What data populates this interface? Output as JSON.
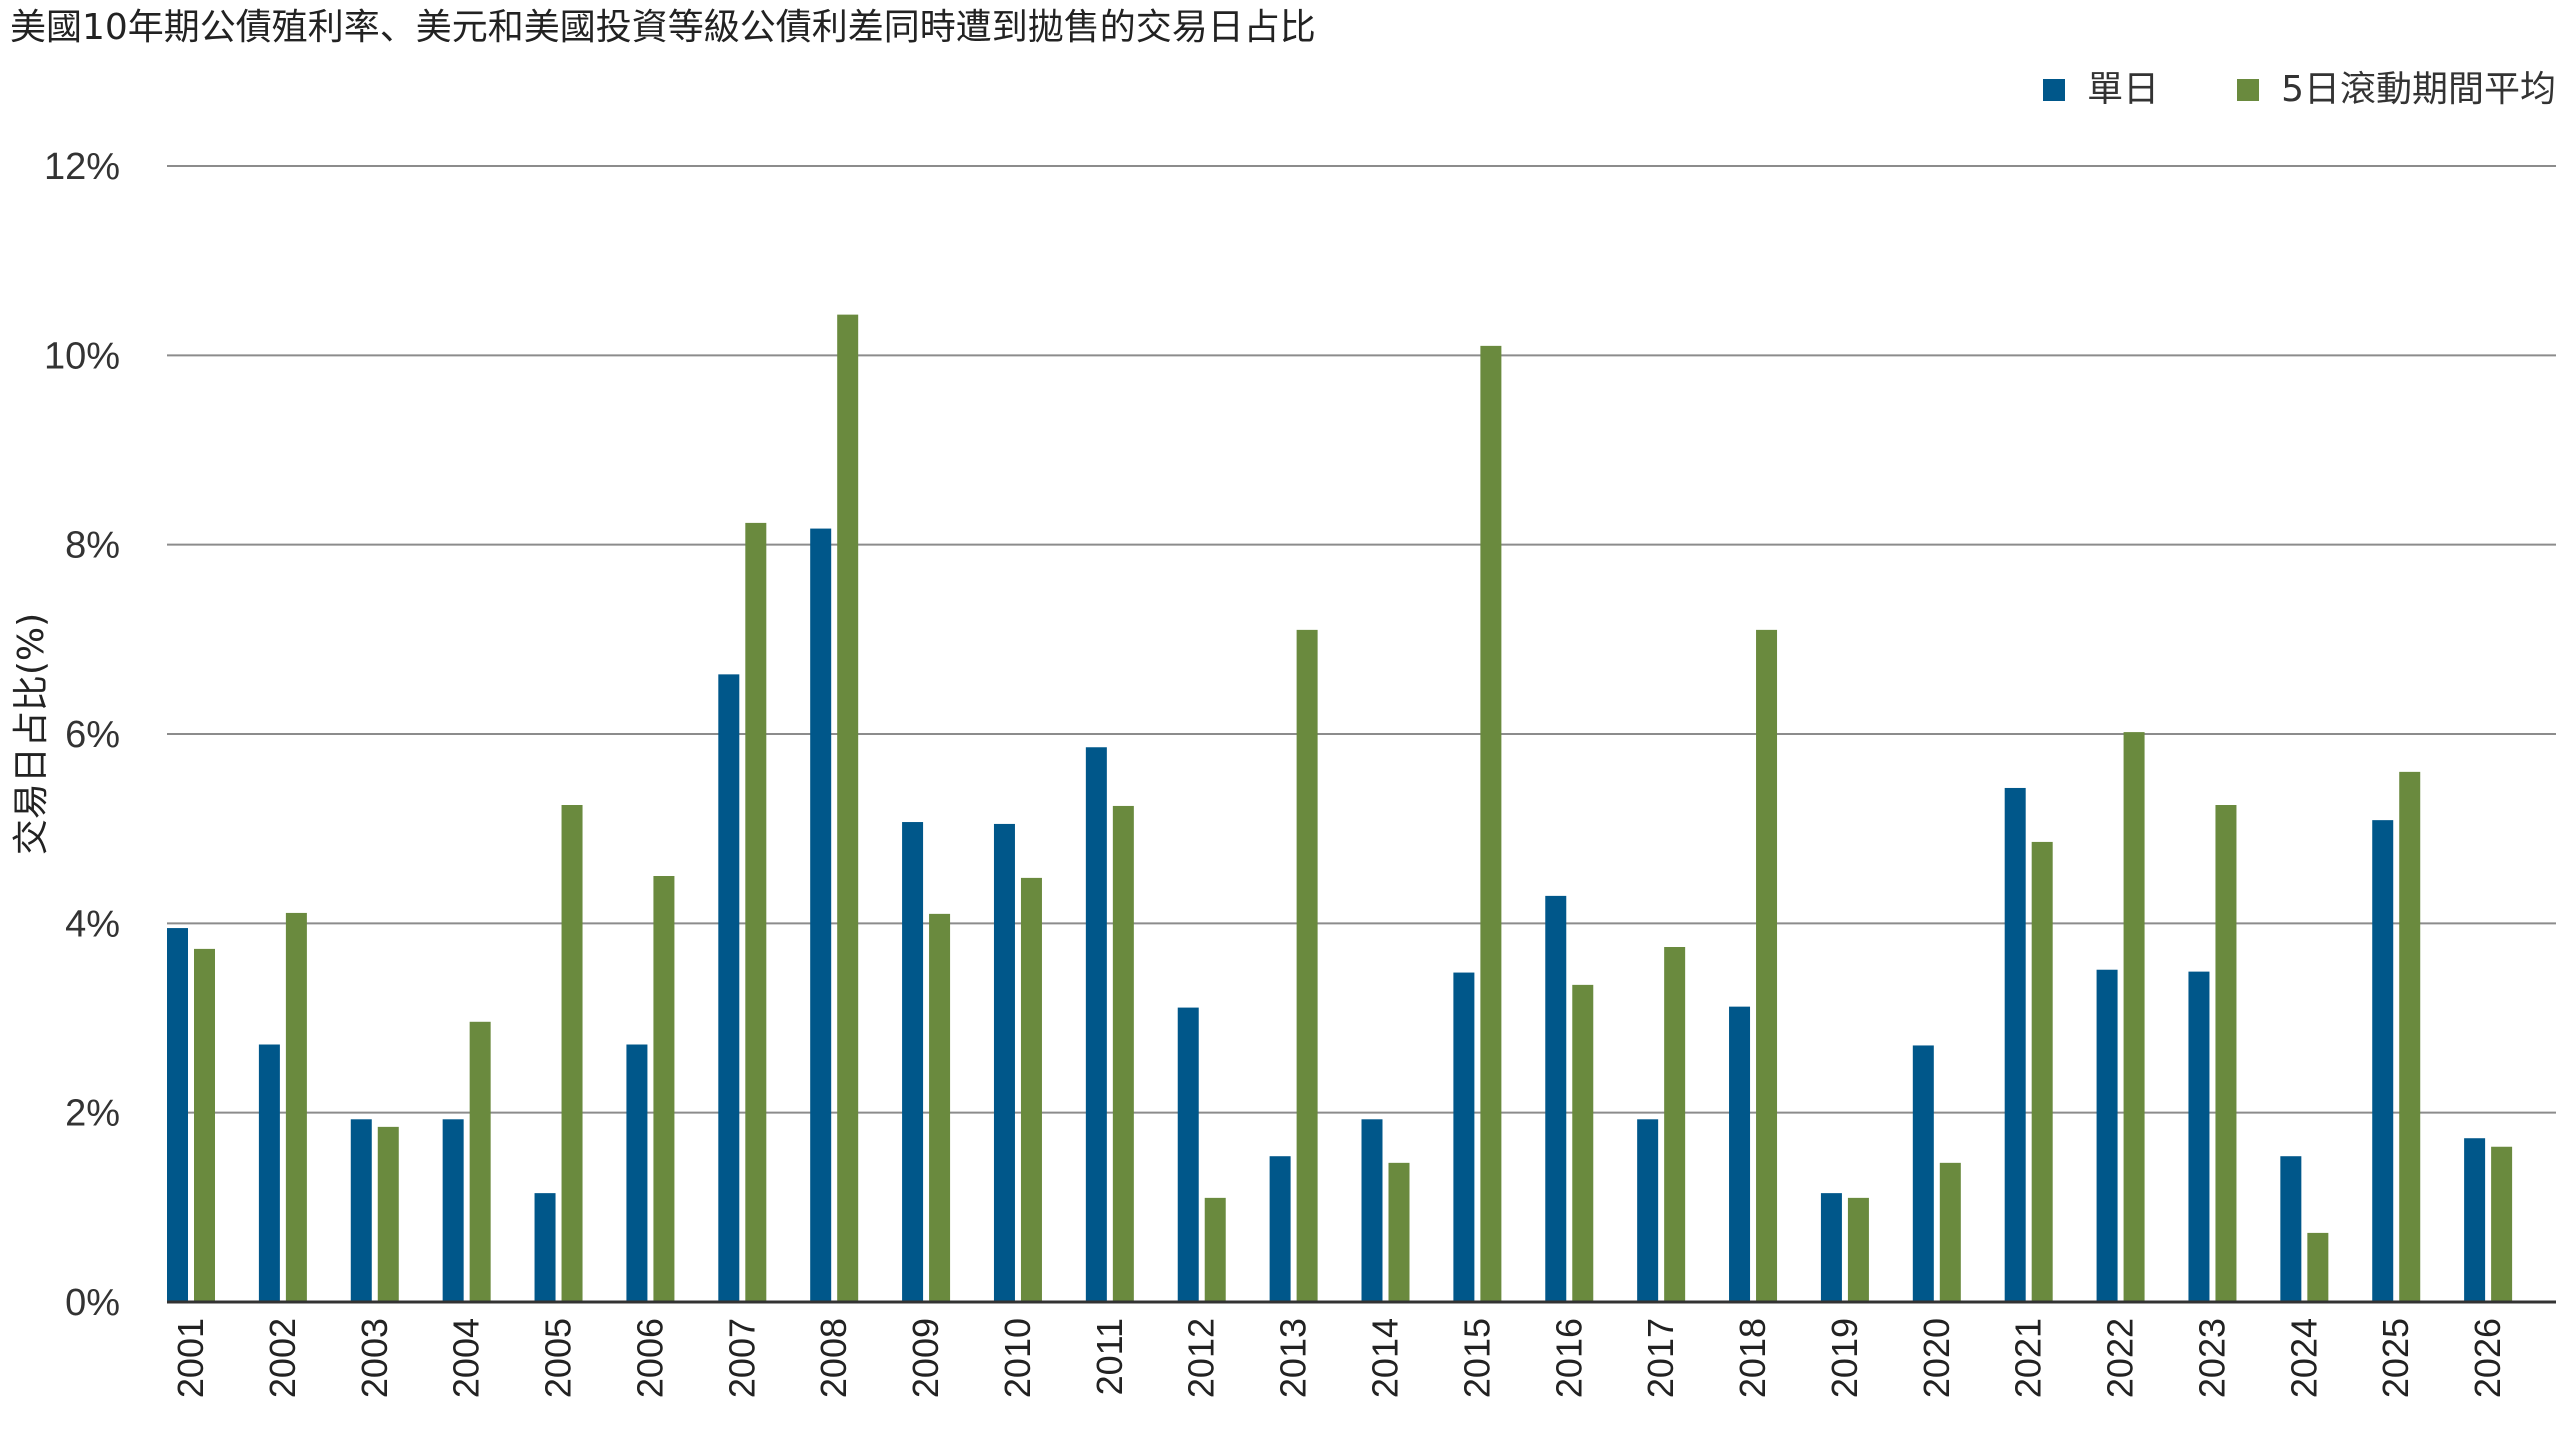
{
  "chart_data": {
    "type": "bar",
    "title": "美國10年期公債殖利率、美元和美國投資等級公債利差同時遭到拋售的交易日占比",
    "xlabel": "",
    "ylabel": "交易日占比(%)",
    "ylim": [
      0,
      12
    ],
    "yticks": [
      "0%",
      "2%",
      "4%",
      "6%",
      "8%",
      "10%",
      "12%"
    ],
    "grid": true,
    "legend_position": "top-right",
    "categories": [
      "2001",
      "2002",
      "2003",
      "2004",
      "2005",
      "2006",
      "2007",
      "2008",
      "2009",
      "2010",
      "2011",
      "2012",
      "2013",
      "2014",
      "2015",
      "2016",
      "2017",
      "2018",
      "2019",
      "2020",
      "2021",
      "2022",
      "2023",
      "2024",
      "2025",
      "2026"
    ],
    "series": [
      {
        "name": "單日",
        "color": "#00578a",
        "values": [
          3.95,
          2.72,
          1.93,
          1.93,
          1.15,
          2.72,
          6.63,
          8.17,
          5.07,
          5.05,
          5.86,
          3.11,
          1.54,
          1.93,
          3.48,
          4.29,
          1.93,
          3.12,
          1.15,
          2.71,
          5.43,
          3.51,
          3.49,
          1.54,
          5.09,
          1.73
        ]
      },
      {
        "name": "5日滾動期間平均",
        "color": "#6a8a3e",
        "values": [
          3.73,
          4.11,
          1.85,
          2.96,
          5.25,
          4.5,
          8.23,
          10.43,
          4.1,
          4.48,
          5.24,
          1.1,
          7.1,
          1.47,
          10.1,
          3.35,
          3.75,
          7.1,
          1.1,
          1.47,
          4.86,
          6.02,
          5.25,
          0.73,
          5.6,
          1.64
        ]
      }
    ]
  }
}
